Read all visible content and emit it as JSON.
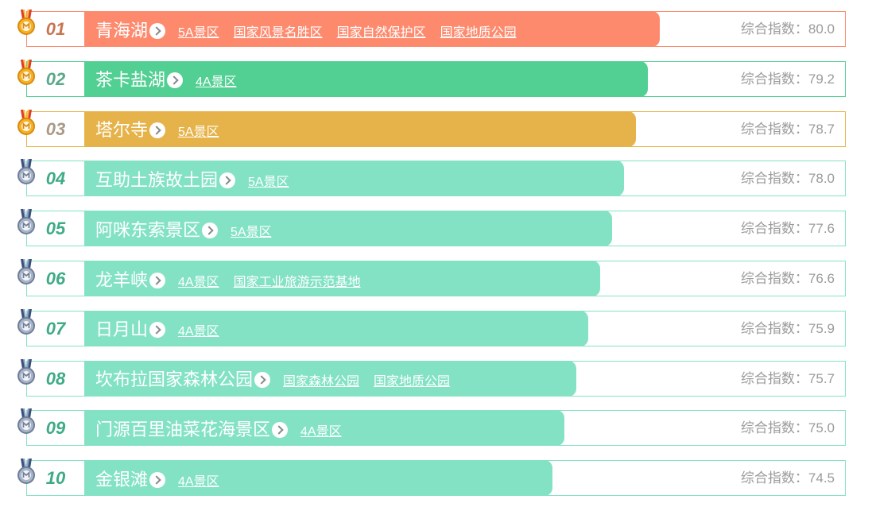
{
  "score_label": "综合指数：",
  "colors": {
    "first": "#fe8a6e",
    "second": "#52cf92",
    "third": "#e6b34a",
    "rest": "#84e2c4",
    "rank_first": "#c9744f",
    "rank_second": "#5aa988",
    "rank_third": "#a89a84",
    "rank_rest": "#3fab86"
  },
  "chart_data": {
    "type": "bar",
    "categories": [
      "青海湖",
      "茶卡盐湖",
      "塔尔寺",
      "互助土族故土园",
      "阿咪东索景区",
      "龙羊峡",
      "日月山",
      "坎布拉国家森林公园",
      "门源百里油菜花海景区",
      "金银滩"
    ],
    "values": [
      80.0,
      79.2,
      78.7,
      78.0,
      77.6,
      76.6,
      75.9,
      75.7,
      75.0,
      74.5
    ]
  },
  "rows": [
    {
      "rank": "01",
      "name": "青海湖",
      "score": "80.0",
      "tier": "gold",
      "tags": [
        "5A景区",
        "国家风景名胜区",
        "国家自然保护区",
        "国家地质公园"
      ]
    },
    {
      "rank": "02",
      "name": "茶卡盐湖",
      "score": "79.2",
      "tier": "gold",
      "tags": [
        "4A景区"
      ]
    },
    {
      "rank": "03",
      "name": "塔尔寺",
      "score": "78.7",
      "tier": "gold",
      "tags": [
        "5A景区"
      ]
    },
    {
      "rank": "04",
      "name": "互助土族故土园",
      "score": "78.0",
      "tier": "silver",
      "tags": [
        "5A景区"
      ]
    },
    {
      "rank": "05",
      "name": "阿咪东索景区",
      "score": "77.6",
      "tier": "silver",
      "tags": [
        "5A景区"
      ]
    },
    {
      "rank": "06",
      "name": "龙羊峡",
      "score": "76.6",
      "tier": "silver",
      "tags": [
        "4A景区",
        "国家工业旅游示范基地"
      ]
    },
    {
      "rank": "07",
      "name": "日月山",
      "score": "75.9",
      "tier": "silver",
      "tags": [
        "4A景区"
      ]
    },
    {
      "rank": "08",
      "name": "坎布拉国家森林公园",
      "score": "75.7",
      "tier": "silver",
      "tags": [
        "国家森林公园",
        "国家地质公园"
      ]
    },
    {
      "rank": "09",
      "name": "门源百里油菜花海景区",
      "score": "75.0",
      "tier": "silver",
      "tags": [
        "4A景区"
      ]
    },
    {
      "rank": "10",
      "name": "金银滩",
      "score": "74.5",
      "tier": "silver",
      "tags": [
        "4A景区"
      ]
    }
  ]
}
